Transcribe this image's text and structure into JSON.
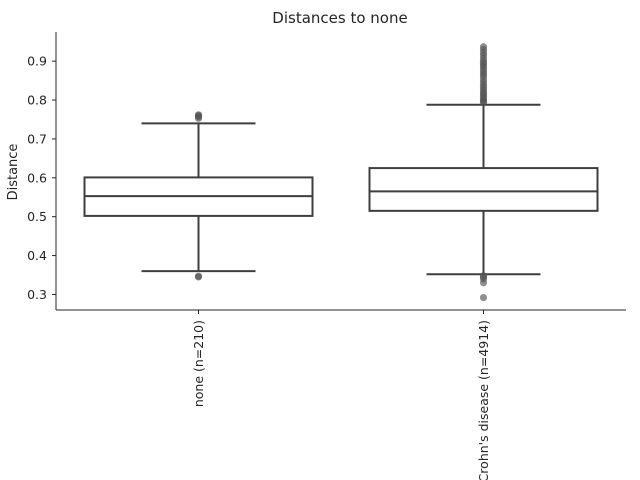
{
  "chart_data": {
    "type": "box",
    "title": "Distances to none",
    "xlabel": "",
    "ylabel": "Distance",
    "ylim": [
      0.26,
      0.975
    ],
    "yticks": [
      0.3,
      0.4,
      0.5,
      0.6,
      0.7,
      0.8,
      0.9
    ],
    "grid": false,
    "categories": [
      "none (n=210)",
      "Crohn's disease (n=4914)"
    ],
    "boxes": [
      {
        "category": "none (n=210)",
        "whisker_low": 0.36,
        "q1": 0.502,
        "median": 0.553,
        "q3": 0.601,
        "whisker_high": 0.74,
        "outliers": [
          0.345,
          0.347,
          0.753,
          0.757,
          0.76,
          0.762
        ]
      },
      {
        "category": "Crohn's disease (n=4914)",
        "whisker_low": 0.352,
        "q1": 0.515,
        "median": 0.565,
        "q3": 0.625,
        "whisker_high": 0.788,
        "outliers": [
          0.292,
          0.33,
          0.34,
          0.345,
          0.348,
          0.793,
          0.797,
          0.8,
          0.805,
          0.81,
          0.815,
          0.82,
          0.826,
          0.832,
          0.838,
          0.845,
          0.852,
          0.86,
          0.866,
          0.872,
          0.878,
          0.885,
          0.89,
          0.895,
          0.9,
          0.907,
          0.915,
          0.922,
          0.93,
          0.937
        ]
      }
    ],
    "colors": {
      "box_line": "#3f3f3f",
      "outlier": "#555555",
      "axis": "#262626"
    }
  }
}
